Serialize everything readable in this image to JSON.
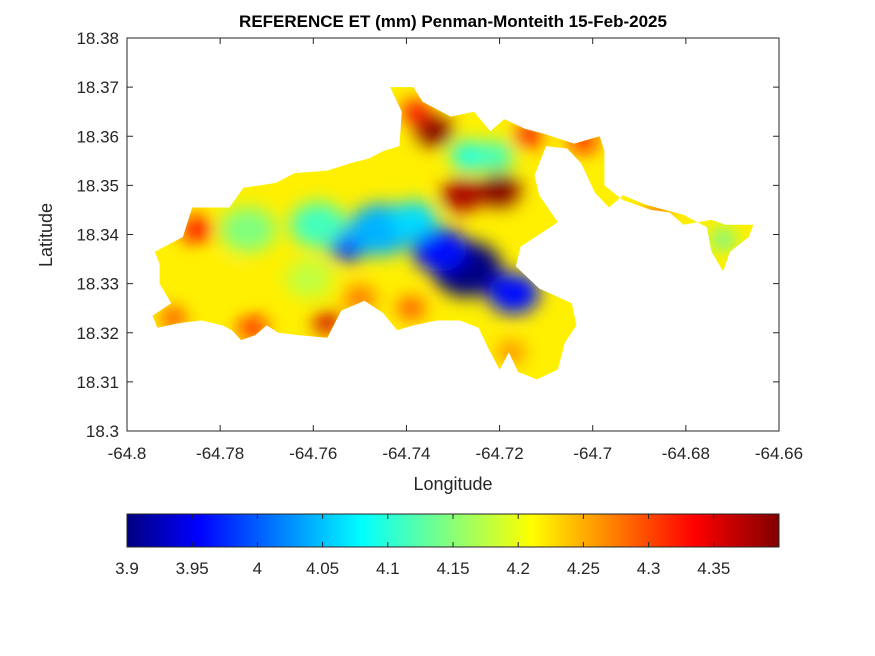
{
  "chart_data": {
    "type": "heatmap",
    "title": "REFERENCE ET (mm) Penman-Monteith 15-Feb-2025",
    "xlabel": "Longitude",
    "ylabel": "Latitude",
    "xlim": [
      -64.8,
      -64.66
    ],
    "ylim": [
      18.3,
      18.38
    ],
    "x_ticks": [
      -64.8,
      -64.78,
      -64.76,
      -64.74,
      -64.72,
      -64.7,
      -64.68,
      -64.66
    ],
    "x_tick_labels": [
      "-64.8",
      "-64.78",
      "-64.76",
      "-64.74",
      "-64.72",
      "-64.7",
      "-64.68",
      "-64.66"
    ],
    "y_ticks": [
      18.3,
      18.31,
      18.32,
      18.33,
      18.34,
      18.35,
      18.36,
      18.37,
      18.38
    ],
    "y_tick_labels": [
      "18.3",
      "18.31",
      "18.32",
      "18.33",
      "18.34",
      "18.35",
      "18.36",
      "18.37",
      "18.38"
    ],
    "colormap": "jet",
    "colorbar": {
      "range": [
        3.9,
        4.4
      ],
      "ticks": [
        3.9,
        3.95,
        4.0,
        4.05,
        4.1,
        4.15,
        4.2,
        4.25,
        4.3,
        4.35
      ],
      "tick_labels": [
        "3.9",
        "3.95",
        "4",
        "4.05",
        "4.1",
        "4.15",
        "4.2",
        "4.25",
        "4.3",
        "4.35"
      ],
      "placement": "bottom"
    },
    "grid": false,
    "region_outline": [
      [
        -64.794,
        18.3365
      ],
      [
        -64.788,
        18.3395
      ],
      [
        -64.786,
        18.3455
      ],
      [
        -64.778,
        18.3455
      ],
      [
        -64.775,
        18.3495
      ],
      [
        -64.768,
        18.3505
      ],
      [
        -64.764,
        18.3525
      ],
      [
        -64.757,
        18.353
      ],
      [
        -64.752,
        18.3545
      ],
      [
        -64.748,
        18.3555
      ],
      [
        -64.745,
        18.357
      ],
      [
        -64.7415,
        18.358
      ],
      [
        -64.741,
        18.365
      ],
      [
        -64.7435,
        18.37
      ],
      [
        -64.7385,
        18.37
      ],
      [
        -64.7365,
        18.367
      ],
      [
        -64.7305,
        18.364
      ],
      [
        -64.7255,
        18.365
      ],
      [
        -64.722,
        18.361
      ],
      [
        -64.719,
        18.3635
      ],
      [
        -64.7145,
        18.3615
      ],
      [
        -64.7105,
        18.3605
      ],
      [
        -64.704,
        18.3585
      ],
      [
        -64.6985,
        18.36
      ],
      [
        -64.6975,
        18.357
      ],
      [
        -64.6975,
        18.35
      ],
      [
        -64.6935,
        18.347
      ],
      [
        -64.6875,
        18.345
      ],
      [
        -64.6835,
        18.3445
      ],
      [
        -64.6805,
        18.342
      ],
      [
        -64.6745,
        18.343
      ],
      [
        -64.6715,
        18.342
      ],
      [
        -64.6655,
        18.342
      ],
      [
        -64.6665,
        18.3395
      ],
      [
        -64.6705,
        18.3365
      ],
      [
        -64.672,
        18.3325
      ],
      [
        -64.6745,
        18.3365
      ],
      [
        -64.6755,
        18.3415
      ],
      [
        -64.6805,
        18.344
      ],
      [
        -64.6885,
        18.346
      ],
      [
        -64.6935,
        18.348
      ],
      [
        -64.6965,
        18.3455
      ],
      [
        -64.6995,
        18.3485
      ],
      [
        -64.7025,
        18.3545
      ],
      [
        -64.7055,
        18.3575
      ],
      [
        -64.71,
        18.358
      ],
      [
        -64.7125,
        18.352
      ],
      [
        -64.7115,
        18.348
      ],
      [
        -64.7075,
        18.3425
      ],
      [
        -64.7155,
        18.3375
      ],
      [
        -64.7165,
        18.3335
      ],
      [
        -64.7115,
        18.329
      ],
      [
        -64.7045,
        18.326
      ],
      [
        -64.7035,
        18.3215
      ],
      [
        -64.706,
        18.318
      ],
      [
        -64.7075,
        18.3125
      ],
      [
        -64.712,
        18.3105
      ],
      [
        -64.716,
        18.312
      ],
      [
        -64.718,
        18.316
      ],
      [
        -64.72,
        18.3125
      ],
      [
        -64.7225,
        18.317
      ],
      [
        -64.7245,
        18.321
      ],
      [
        -64.7285,
        18.3225
      ],
      [
        -64.7335,
        18.3225
      ],
      [
        -64.7385,
        18.3215
      ],
      [
        -64.742,
        18.3205
      ],
      [
        -64.745,
        18.324
      ],
      [
        -64.749,
        18.3265
      ],
      [
        -64.754,
        18.3245
      ],
      [
        -64.757,
        18.319
      ],
      [
        -64.763,
        18.3195
      ],
      [
        -64.7675,
        18.32
      ],
      [
        -64.77,
        18.3215
      ],
      [
        -64.7725,
        18.3195
      ],
      [
        -64.7755,
        18.3185
      ],
      [
        -64.7775,
        18.3205
      ],
      [
        -64.7795,
        18.3215
      ],
      [
        -64.784,
        18.3225
      ],
      [
        -64.7885,
        18.322
      ],
      [
        -64.7935,
        18.321
      ],
      [
        -64.7945,
        18.3235
      ],
      [
        -64.7905,
        18.326
      ],
      [
        -64.793,
        18.33
      ],
      [
        -64.793,
        18.334
      ]
    ],
    "value_field": [
      {
        "lon": -64.727,
        "lat": 18.333,
        "value": 3.9,
        "radius": 0.0075
      },
      {
        "lon": -64.733,
        "lat": 18.337,
        "value": 3.97,
        "radius": 0.006
      },
      {
        "lon": -64.717,
        "lat": 18.328,
        "value": 3.97,
        "radius": 0.0055
      },
      {
        "lon": -64.7525,
        "lat": 18.338,
        "value": 3.98,
        "radius": 0.0045
      },
      {
        "lon": -64.7455,
        "lat": 18.341,
        "value": 4.05,
        "radius": 0.007
      },
      {
        "lon": -64.7385,
        "lat": 18.343,
        "value": 4.07,
        "radius": 0.005
      },
      {
        "lon": -64.7265,
        "lat": 18.356,
        "value": 4.1,
        "radius": 0.004
      },
      {
        "lon": -64.721,
        "lat": 18.356,
        "value": 4.12,
        "radius": 0.004
      },
      {
        "lon": -64.759,
        "lat": 18.342,
        "value": 4.12,
        "radius": 0.006
      },
      {
        "lon": -64.774,
        "lat": 18.341,
        "value": 4.15,
        "radius": 0.006
      },
      {
        "lon": -64.761,
        "lat": 18.331,
        "value": 4.18,
        "radius": 0.005
      },
      {
        "lon": -64.672,
        "lat": 18.339,
        "value": 4.12,
        "radius": 0.0025
      },
      {
        "lon": -64.779,
        "lat": 18.331,
        "value": 4.22,
        "radius": 0.005
      },
      {
        "lon": -64.7175,
        "lat": 18.316,
        "value": 4.27,
        "radius": 0.003
      },
      {
        "lon": -64.728,
        "lat": 18.348,
        "value": 4.38,
        "radius": 0.0045
      },
      {
        "lon": -64.72,
        "lat": 18.349,
        "value": 4.4,
        "radius": 0.0045
      },
      {
        "lon": -64.734,
        "lat": 18.361,
        "value": 4.4,
        "radius": 0.004
      },
      {
        "lon": -64.738,
        "lat": 18.365,
        "value": 4.34,
        "radius": 0.003
      },
      {
        "lon": -64.785,
        "lat": 18.341,
        "value": 4.33,
        "radius": 0.0035
      },
      {
        "lon": -64.757,
        "lat": 18.322,
        "value": 4.36,
        "radius": 0.003
      },
      {
        "lon": -64.773,
        "lat": 18.321,
        "value": 4.33,
        "radius": 0.003
      },
      {
        "lon": -64.79,
        "lat": 18.323,
        "value": 4.32,
        "radius": 0.0025
      },
      {
        "lon": -64.714,
        "lat": 18.36,
        "value": 4.34,
        "radius": 0.003
      },
      {
        "lon": -64.702,
        "lat": 18.359,
        "value": 4.33,
        "radius": 0.003
      },
      {
        "lon": -64.686,
        "lat": 18.345,
        "value": 4.3,
        "radius": 0.0025
      },
      {
        "lon": -64.739,
        "lat": 18.325,
        "value": 4.3,
        "radius": 0.003
      },
      {
        "lon": -64.75,
        "lat": 18.327,
        "value": 4.28,
        "radius": 0.0035
      }
    ]
  }
}
